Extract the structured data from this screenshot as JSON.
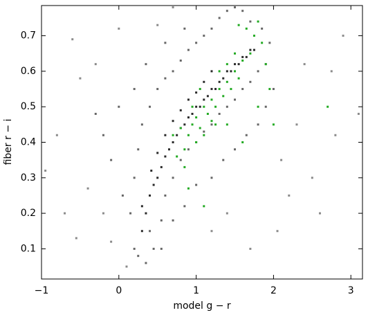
{
  "chart_data": {
    "type": "scatter",
    "xlabel": "model g − r",
    "ylabel": "fiber r − i",
    "xlim": [
      -1,
      3.15
    ],
    "ylim": [
      0.015,
      0.785
    ],
    "xticks": [
      {
        "value": -1,
        "label": "−1"
      },
      0,
      1,
      2,
      3
    ],
    "yticks": [
      0.1,
      0.2,
      0.3,
      0.4,
      0.5,
      0.6,
      0.7
    ],
    "series": [
      {
        "color": "#8a8a8a",
        "x": [
          -0.8,
          -0.95,
          -0.6,
          -0.5,
          -0.4,
          -0.2,
          -0.1,
          0.1,
          -0.3,
          0.5,
          0.7,
          2.3,
          2.5,
          2.8,
          3.1,
          2.9,
          2.6,
          2.2,
          2.05,
          1.7,
          1.4,
          2.4,
          -0.55,
          0.0,
          -0.7,
          2.75,
          2.1,
          1.2
        ],
        "values": [
          0.42,
          0.32,
          0.69,
          0.58,
          0.27,
          0.2,
          0.12,
          0.05,
          0.62,
          0.73,
          0.78,
          0.45,
          0.3,
          0.42,
          0.48,
          0.7,
          0.2,
          0.25,
          0.15,
          0.1,
          0.2,
          0.62,
          0.13,
          0.72,
          0.2,
          0.6,
          0.35,
          0.15
        ]
      },
      {
        "color": "#666666",
        "x": [
          0.2,
          0.25,
          0.35,
          0.45,
          0.4,
          0.15,
          0.55,
          0.2,
          0.6,
          0.25,
          0.7,
          0.3,
          0.8,
          0.4,
          0.9,
          0.5,
          1.0,
          0.6,
          1.1,
          0.7,
          1.2,
          0.8,
          1.3,
          0.9,
          1.4,
          1.0,
          1.5,
          1.1,
          1.6,
          1.2,
          1.7,
          1.3,
          1.8,
          1.4,
          1.9,
          1.5,
          1.95,
          1.6,
          1.85,
          1.7,
          2.0,
          1.9,
          1.8,
          1.65,
          1.5,
          1.35,
          1.2,
          1.0,
          0.85,
          0.7,
          0.55,
          0.05,
          -0.1,
          -0.2,
          -0.3,
          0.0,
          0.2,
          0.35,
          0.6,
          0.85
        ],
        "values": [
          0.1,
          0.08,
          0.06,
          0.1,
          0.15,
          0.2,
          0.18,
          0.3,
          0.25,
          0.38,
          0.3,
          0.45,
          0.35,
          0.5,
          0.38,
          0.55,
          0.4,
          0.58,
          0.43,
          0.6,
          0.45,
          0.63,
          0.48,
          0.66,
          0.5,
          0.68,
          0.52,
          0.7,
          0.55,
          0.72,
          0.57,
          0.75,
          0.6,
          0.77,
          0.62,
          0.78,
          0.68,
          0.77,
          0.72,
          0.74,
          0.55,
          0.5,
          0.45,
          0.42,
          0.38,
          0.35,
          0.3,
          0.28,
          0.22,
          0.18,
          0.1,
          0.25,
          0.35,
          0.42,
          0.48,
          0.5,
          0.55,
          0.62,
          0.68,
          0.72
        ]
      },
      {
        "color": "#2a2a2a",
        "x": [
          0.3,
          0.35,
          0.4,
          0.3,
          0.45,
          0.5,
          0.42,
          0.55,
          0.6,
          0.5,
          0.65,
          0.7,
          0.6,
          0.75,
          0.8,
          0.7,
          0.85,
          0.9,
          0.8,
          0.95,
          1.0,
          0.9,
          1.05,
          1.1,
          1.0,
          1.15,
          1.2,
          1.1,
          1.25,
          1.3,
          1.2,
          1.35,
          1.4,
          1.45,
          1.5,
          1.55,
          1.6,
          1.65,
          1.7,
          1.75
        ],
        "values": [
          0.15,
          0.2,
          0.25,
          0.22,
          0.28,
          0.3,
          0.32,
          0.33,
          0.36,
          0.37,
          0.38,
          0.4,
          0.42,
          0.42,
          0.44,
          0.46,
          0.45,
          0.47,
          0.49,
          0.48,
          0.5,
          0.52,
          0.5,
          0.52,
          0.54,
          0.53,
          0.55,
          0.57,
          0.55,
          0.57,
          0.6,
          0.58,
          0.6,
          0.6,
          0.62,
          0.62,
          0.64,
          0.64,
          0.66,
          0.66
        ]
      },
      {
        "color": "#22aa22",
        "x": [
          0.9,
          0.95,
          1.0,
          1.05,
          1.1,
          1.0,
          1.15,
          1.2,
          1.25,
          1.3,
          1.2,
          1.35,
          1.4,
          1.3,
          1.45,
          1.5,
          1.4,
          1.55,
          1.6,
          1.5,
          1.7,
          1.75,
          1.65,
          1.85,
          1.9,
          0.85,
          0.8,
          1.1,
          1.05,
          0.95,
          1.25,
          0.75,
          0.7,
          1.8,
          2.0,
          1.95,
          1.6,
          1.4,
          0.9,
          1.1,
          2.7,
          1.55,
          1.8,
          0.85
        ],
        "values": [
          0.42,
          0.45,
          0.47,
          0.44,
          0.5,
          0.4,
          0.48,
          0.52,
          0.5,
          0.55,
          0.46,
          0.53,
          0.57,
          0.6,
          0.55,
          0.6,
          0.62,
          0.58,
          0.63,
          0.65,
          0.65,
          0.7,
          0.72,
          0.68,
          0.62,
          0.38,
          0.44,
          0.42,
          0.55,
          0.5,
          0.45,
          0.36,
          0.42,
          0.5,
          0.45,
          0.55,
          0.4,
          0.45,
          0.27,
          0.22,
          0.5,
          0.73,
          0.74,
          0.33
        ]
      }
    ]
  }
}
